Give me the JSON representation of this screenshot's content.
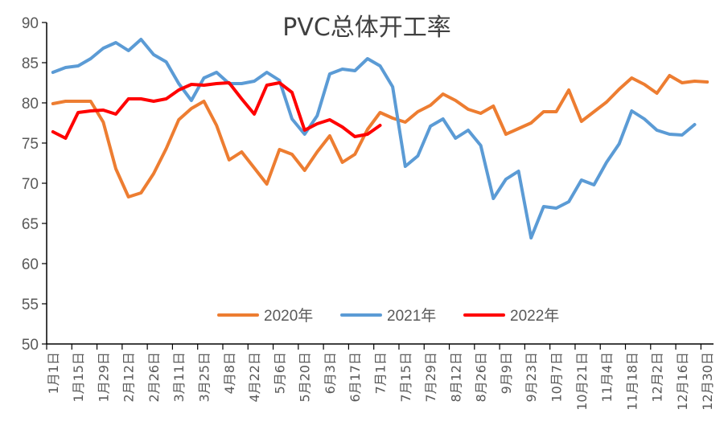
{
  "chart_data": {
    "type": "line",
    "title": "PVC总体开工率",
    "xlabel": "",
    "ylabel": "",
    "ylim": [
      50,
      90
    ],
    "yticks": [
      50,
      55,
      60,
      65,
      70,
      75,
      80,
      85,
      90
    ],
    "grid": false,
    "legend_position": "bottom-center",
    "x_tick_labels": [
      "1月1日",
      "1月15日",
      "1月29日",
      "2月12日",
      "2月26日",
      "3月11日",
      "3月25日",
      "4月8日",
      "4月22日",
      "5月6日",
      "5月20日",
      "6月3日",
      "6月17日",
      "7月1日",
      "7月15日",
      "7月29日",
      "8月12日",
      "8月26日",
      "9月9日",
      "9月23日",
      "10月7日",
      "10月21日",
      "11月4日",
      "11月18日",
      "12月2日",
      "12月16日",
      "12月30日"
    ],
    "series": [
      {
        "name": "2020年",
        "color": "#ED7D31",
        "values": [
          79.9,
          80.2,
          80.2,
          80.2,
          77.6,
          71.8,
          68.3,
          68.8,
          71.2,
          74.3,
          77.9,
          79.3,
          80.2,
          77.2,
          72.9,
          73.9,
          71.9,
          69.9,
          74.2,
          73.6,
          71.6,
          73.9,
          75.9,
          72.6,
          73.6,
          76.7,
          78.8,
          78.1,
          77.6,
          78.9,
          79.7,
          81.1,
          80.3,
          79.2,
          78.7,
          79.6,
          76.1,
          76.8,
          77.5,
          78.9,
          78.9,
          81.6,
          77.7,
          78.9,
          80.1,
          81.7,
          83.1,
          82.3,
          81.2,
          83.4,
          82.5,
          82.7,
          82.6
        ]
      },
      {
        "name": "2021年",
        "color": "#5B9BD5",
        "values": [
          83.8,
          84.4,
          84.6,
          85.5,
          86.8,
          87.5,
          86.5,
          87.9,
          86.0,
          85.1,
          82.4,
          80.3,
          83.1,
          83.8,
          82.4,
          82.4,
          82.7,
          83.8,
          82.8,
          78.0,
          76.1,
          78.4,
          83.6,
          84.2,
          84.0,
          85.5,
          84.6,
          82.0,
          72.1,
          73.4,
          77.1,
          78.0,
          75.6,
          76.6,
          74.7,
          68.1,
          70.5,
          71.5,
          63.2,
          67.1,
          66.9,
          67.7,
          70.4,
          69.8,
          72.6,
          74.9,
          79.0,
          78.0,
          76.6,
          76.1,
          76.0,
          77.3
        ]
      },
      {
        "name": "2022年",
        "color": "#FF0000",
        "values": [
          76.4,
          75.6,
          78.8,
          79.0,
          79.1,
          78.6,
          80.5,
          80.5,
          80.2,
          80.5,
          81.6,
          82.3,
          82.2,
          82.4,
          82.5,
          80.5,
          78.6,
          82.2,
          82.5,
          81.3,
          76.6,
          77.4,
          77.9,
          77.0,
          75.8,
          76.1,
          77.2
        ]
      }
    ]
  }
}
